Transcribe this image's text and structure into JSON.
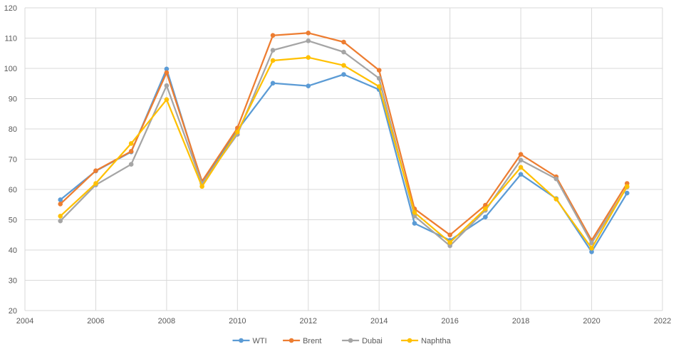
{
  "chart_data": {
    "type": "line",
    "xlim": [
      2004,
      2022
    ],
    "ylim": [
      20,
      120
    ],
    "x_ticks": [
      2004,
      2006,
      2008,
      2010,
      2012,
      2014,
      2016,
      2018,
      2020,
      2022
    ],
    "y_ticks": [
      20,
      30,
      40,
      50,
      60,
      70,
      80,
      90,
      100,
      110,
      120
    ],
    "grid": true,
    "legend_position": "bottom",
    "x": [
      2005,
      2006,
      2007,
      2008,
      2009,
      2010,
      2011,
      2012,
      2013,
      2014,
      2015,
      2016,
      2017,
      2018,
      2019,
      2020,
      2021
    ],
    "series": [
      {
        "name": "WTI",
        "color": "#5B9BD5",
        "values": [
          56.6,
          66.1,
          72.4,
          99.8,
          62.1,
          79.6,
          95.1,
          94.2,
          98.0,
          93.0,
          48.8,
          43.2,
          50.9,
          65.0,
          57.0,
          39.4,
          58.8
        ]
      },
      {
        "name": "Brent",
        "color": "#ED7D31",
        "values": [
          55.2,
          66.2,
          72.6,
          98.6,
          62.7,
          80.3,
          110.9,
          111.7,
          108.7,
          99.4,
          53.6,
          45.0,
          54.8,
          71.6,
          64.2,
          43.2,
          62.0
        ]
      },
      {
        "name": "Dubai",
        "color": "#A5A5A5",
        "values": [
          49.6,
          61.5,
          68.3,
          94.3,
          61.9,
          78.2,
          106.0,
          109.1,
          105.4,
          96.7,
          51.2,
          41.4,
          53.1,
          69.7,
          63.5,
          42.3,
          60.8
        ]
      },
      {
        "name": "Naphtha",
        "color": "#FFC000",
        "values": [
          51.2,
          62.0,
          75.2,
          89.7,
          61.0,
          79.0,
          102.6,
          103.6,
          101.0,
          94.0,
          52.4,
          42.5,
          53.6,
          67.3,
          56.8,
          40.6,
          61.0
        ]
      }
    ]
  }
}
